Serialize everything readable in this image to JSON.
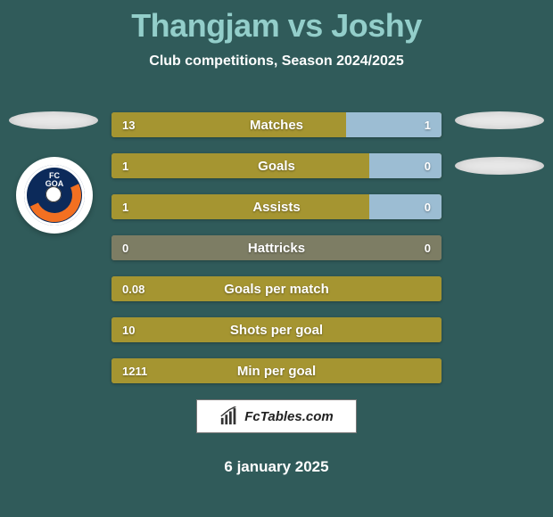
{
  "colors": {
    "bg": "#305b5a",
    "title": "#93ceca",
    "text_light": "#ffffff",
    "bar_main": "#a59531",
    "bar_alt": "#9cbdd3",
    "bar_neutral": "#7d7d64",
    "oval": "#e8e8e8",
    "badge_bg": "#0c2a5a"
  },
  "title": "Thangjam vs Joshy",
  "subtitle": "Club competitions, Season 2024/2025",
  "club_badge": {
    "text": "FC\nGOA"
  },
  "stats": [
    {
      "label": "Matches",
      "left_val": "13",
      "right_val": "1",
      "left_pct": 71,
      "right_pct": 29,
      "left_color": "#a59531",
      "right_color": "#9cbdd3"
    },
    {
      "label": "Goals",
      "left_val": "1",
      "right_val": "0",
      "left_pct": 78,
      "right_pct": 22,
      "left_color": "#a59531",
      "right_color": "#9cbdd3"
    },
    {
      "label": "Assists",
      "left_val": "1",
      "right_val": "0",
      "left_pct": 78,
      "right_pct": 22,
      "left_color": "#a59531",
      "right_color": "#9cbdd3"
    },
    {
      "label": "Hattricks",
      "left_val": "0",
      "right_val": "0",
      "left_pct": 100,
      "right_pct": 0,
      "left_color": "#7d7d64",
      "right_color": "#7d7d64"
    },
    {
      "label": "Goals per match",
      "left_val": "0.08",
      "right_val": "",
      "left_pct": 100,
      "right_pct": 0,
      "left_color": "#a59531",
      "right_color": "#a59531"
    },
    {
      "label": "Shots per goal",
      "left_val": "10",
      "right_val": "",
      "left_pct": 100,
      "right_pct": 0,
      "left_color": "#a59531",
      "right_color": "#a59531"
    },
    {
      "label": "Min per goal",
      "left_val": "1211",
      "right_val": "",
      "left_pct": 100,
      "right_pct": 0,
      "left_color": "#a59531",
      "right_color": "#a59531"
    }
  ],
  "watermark": "FcTables.com",
  "date": "6 january 2025"
}
